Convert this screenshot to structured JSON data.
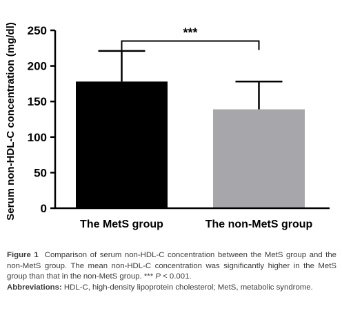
{
  "chart_data": {
    "type": "bar",
    "title": "",
    "xlabel": "",
    "ylabel": "Serum non-HDL-C concentration (mg/dl)",
    "ylim": [
      0,
      250
    ],
    "yticks": [
      0,
      50,
      100,
      150,
      200,
      250
    ],
    "categories": [
      "The MetS group",
      "The non-MetS group"
    ],
    "values": [
      178,
      139
    ],
    "errors_upper": [
      221,
      178
    ],
    "colors": [
      "#000000",
      "#a7a7ab"
    ],
    "significance": {
      "label": "***",
      "between": [
        0,
        1
      ],
      "level": 235
    },
    "grid": false,
    "legend": "none"
  },
  "caption": {
    "figure_label": "Figure 1",
    "text": "Comparison of serum non-HDL-C concentration between the MetS group and the non-MetS group. The mean non-HDL-C concentration was significantly higher in the MetS group than that in the non-MetS group. *** ",
    "p_symbol": "P",
    "p_value": " < 0.001.",
    "abbrev_label": "Abbreviations:",
    "abbrev_text": "HDL-C, high-density lipoprotein cholesterol; MetS, metabolic syndrome."
  }
}
